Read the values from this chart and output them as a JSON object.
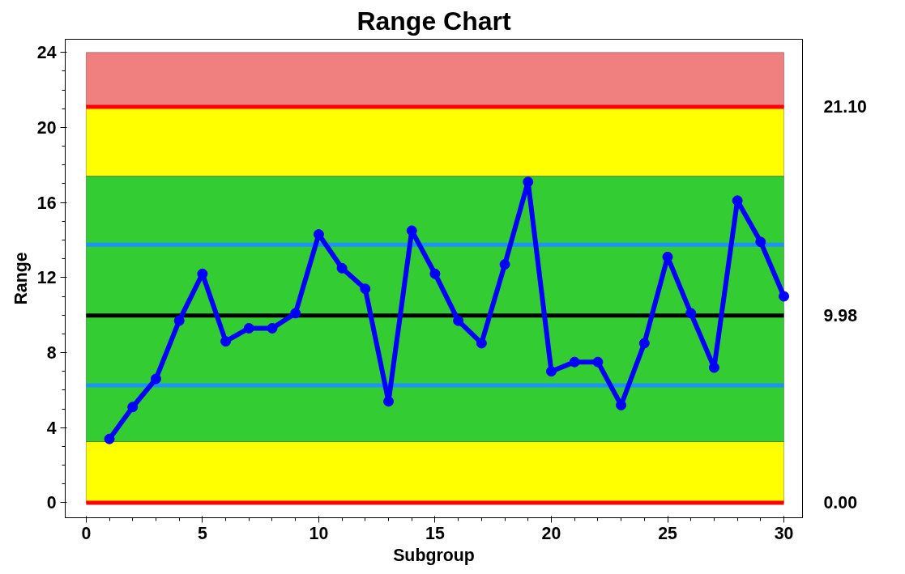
{
  "chart_data": {
    "type": "line",
    "title": "Range Chart",
    "xlabel": "Subgroup",
    "ylabel": "Range",
    "x": [
      1,
      2,
      3,
      4,
      5,
      6,
      7,
      8,
      9,
      10,
      11,
      12,
      13,
      14,
      15,
      16,
      17,
      18,
      19,
      20,
      21,
      22,
      23,
      24,
      25,
      26,
      27,
      28,
      29,
      30
    ],
    "series": [
      {
        "color": "#0000ff",
        "values": [
          3.4,
          5.1,
          6.6,
          9.7,
          12.2,
          8.6,
          9.3,
          9.3,
          10.1,
          14.3,
          12.5,
          11.4,
          5.4,
          14.5,
          12.2,
          9.7,
          8.5,
          12.7,
          17.1,
          7.0,
          7.5,
          7.5,
          5.2,
          8.5,
          13.1,
          10.1,
          7.2,
          16.1,
          13.9,
          11.0
        ]
      }
    ],
    "xlim": [
      -0.9,
      30.8
    ],
    "ylim": [
      -0.8,
      24.7
    ],
    "xticks": [
      0,
      5,
      10,
      15,
      20,
      25,
      30
    ],
    "yticks": [
      0,
      4,
      8,
      12,
      16,
      20,
      24
    ],
    "bands": [
      {
        "axis": "y",
        "from": 21.1,
        "to": 24,
        "color": "#f08080"
      },
      {
        "axis": "y",
        "from": 17.4,
        "to": 21.1,
        "color": "#ffff00"
      },
      {
        "axis": "y",
        "from": 3.25,
        "to": 17.4,
        "color": "#33cc33"
      },
      {
        "axis": "y",
        "from": 0,
        "to": 3.25,
        "color": "#ffff00"
      }
    ],
    "ref_lines": [
      {
        "axis": "y",
        "value": 21.1,
        "label": "21.10",
        "color": "#ff0000"
      },
      {
        "axis": "y",
        "value": 13.75,
        "label": null,
        "color": "#1e90ff"
      },
      {
        "axis": "y",
        "value": 9.98,
        "label": "9.98",
        "color": "#000000"
      },
      {
        "axis": "y",
        "value": 6.25,
        "label": null,
        "color": "#1e90ff"
      },
      {
        "axis": "y",
        "value": 0,
        "label": "0.00",
        "color": "#ff0000"
      }
    ],
    "grid": false,
    "marker": "circle",
    "line_style": "solid"
  }
}
